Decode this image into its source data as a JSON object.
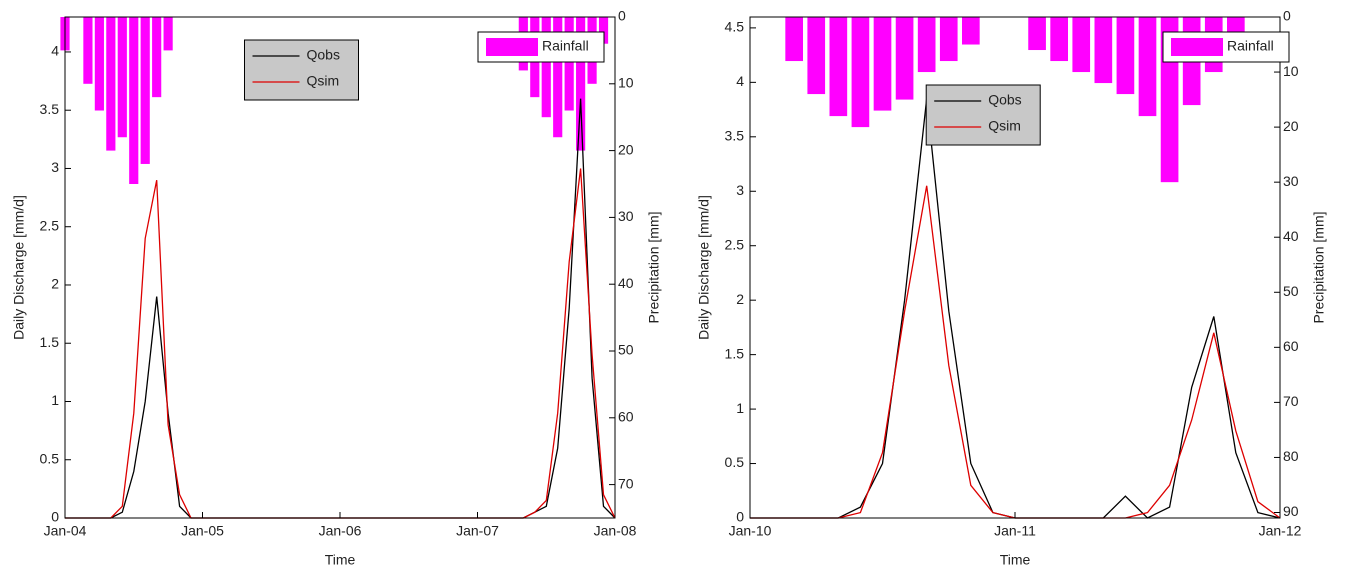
{
  "chart_data": [
    {
      "type": "line",
      "xlabel": "Time",
      "ylabel": "Daily Discharge [mm/d]",
      "y2label": "Precipitation [mm]",
      "xlim": [
        "2004-01",
        "2008-01"
      ],
      "xticks": [
        {
          "value": "2004-01",
          "label": "Jan-04"
        },
        {
          "value": "2005-01",
          "label": "Jan-05"
        },
        {
          "value": "2006-01",
          "label": "Jan-06"
        },
        {
          "value": "2007-01",
          "label": "Jan-07"
        },
        {
          "value": "2008-01",
          "label": "Jan-08"
        }
      ],
      "ylim": [
        0,
        4.3
      ],
      "yticks": [
        0,
        0.5,
        1,
        1.5,
        2,
        2.5,
        3,
        3.5,
        4
      ],
      "y2lim": [
        0,
        75
      ],
      "y2ticks": [
        0,
        10,
        20,
        30,
        40,
        50,
        60,
        70
      ],
      "y2_inverted": true,
      "x": [
        "2004-01",
        "2004-05",
        "2004-06",
        "2004-07",
        "2004-08",
        "2004-09",
        "2004-10",
        "2004-11",
        "2004-12",
        "2007-05",
        "2007-06",
        "2007-07",
        "2007-08",
        "2007-09",
        "2007-10",
        "2007-11",
        "2007-12",
        "2008-01"
      ],
      "series": [
        {
          "name": "Qobs",
          "color": "#000000",
          "values": [
            0,
            0,
            0.05,
            0.4,
            1.0,
            1.9,
            0.9,
            0.1,
            0,
            0,
            0.05,
            0.1,
            0.6,
            1.8,
            3.6,
            1.2,
            0.1,
            0
          ]
        },
        {
          "name": "Qsim",
          "color": "#dd0000",
          "values": [
            0,
            0,
            0.1,
            0.9,
            2.4,
            2.9,
            0.8,
            0.2,
            0,
            0,
            0.05,
            0.15,
            0.9,
            2.2,
            3.0,
            1.4,
            0.2,
            0
          ]
        },
        {
          "name": "Rainfall",
          "type": "bar",
          "axis": "y2",
          "color": "#ff00ff",
          "x": [
            "2004-01",
            "2004-03",
            "2004-04",
            "2004-05",
            "2004-06",
            "2004-07",
            "2004-08",
            "2004-09",
            "2004-10",
            "2007-05",
            "2007-06",
            "2007-07",
            "2007-08",
            "2007-09",
            "2007-10",
            "2007-11",
            "2007-12"
          ],
          "values": [
            5,
            10,
            14,
            20,
            18,
            25,
            22,
            12,
            5,
            8,
            12,
            15,
            18,
            14,
            20,
            10,
            4
          ]
        }
      ]
    },
    {
      "type": "line",
      "xlabel": "Time",
      "ylabel": "Daily Discharge [mm/d]",
      "y2label": "Precipitation [mm]",
      "xlim": [
        "2010-01",
        "2012-01"
      ],
      "xticks": [
        {
          "value": "2010-01",
          "label": "Jan-10"
        },
        {
          "value": "2011-01",
          "label": "Jan-11"
        },
        {
          "value": "2012-01",
          "label": "Jan-12"
        }
      ],
      "ylim": [
        0,
        4.6
      ],
      "yticks": [
        0,
        0.5,
        1,
        1.5,
        2,
        2.5,
        3,
        3.5,
        4,
        4.5
      ],
      "y2lim": [
        0,
        91
      ],
      "y2ticks": [
        0,
        10,
        20,
        30,
        40,
        50,
        60,
        70,
        80,
        90
      ],
      "y2_inverted": true,
      "x": [
        "2010-01",
        "2010-02",
        "2010-03",
        "2010-04",
        "2010-05",
        "2010-06",
        "2010-07",
        "2010-08",
        "2010-09",
        "2010-10",
        "2010-11",
        "2010-12",
        "2011-01",
        "2011-02",
        "2011-03",
        "2011-04",
        "2011-05",
        "2011-06",
        "2011-07",
        "2011-08",
        "2011-09",
        "2011-10",
        "2011-11",
        "2011-12",
        "2012-01"
      ],
      "series": [
        {
          "name": "Qobs",
          "color": "#000000",
          "values": [
            0,
            0,
            0,
            0,
            0,
            0.1,
            0.5,
            2.0,
            3.85,
            1.9,
            0.5,
            0.05,
            0,
            0,
            0,
            0,
            0,
            0.2,
            0,
            0.1,
            1.2,
            1.85,
            0.6,
            0.05,
            0
          ]
        },
        {
          "name": "Qsim",
          "color": "#dd0000",
          "values": [
            0,
            0,
            0,
            0,
            0,
            0.05,
            0.6,
            1.9,
            3.05,
            1.4,
            0.3,
            0.05,
            0,
            0,
            0,
            0,
            0,
            0,
            0.05,
            0.3,
            0.9,
            1.7,
            0.8,
            0.15,
            0
          ]
        },
        {
          "name": "Rainfall",
          "type": "bar",
          "axis": "y2",
          "color": "#ff00ff",
          "x": [
            "2010-03",
            "2010-04",
            "2010-05",
            "2010-06",
            "2010-07",
            "2010-08",
            "2010-09",
            "2010-10",
            "2010-11",
            "2011-02",
            "2011-03",
            "2011-04",
            "2011-05",
            "2011-06",
            "2011-07",
            "2011-08",
            "2011-09",
            "2011-10",
            "2011-11"
          ],
          "values": [
            8,
            14,
            18,
            20,
            17,
            15,
            10,
            8,
            5,
            6,
            8,
            10,
            12,
            14,
            18,
            30,
            16,
            10,
            6
          ]
        }
      ]
    }
  ]
}
